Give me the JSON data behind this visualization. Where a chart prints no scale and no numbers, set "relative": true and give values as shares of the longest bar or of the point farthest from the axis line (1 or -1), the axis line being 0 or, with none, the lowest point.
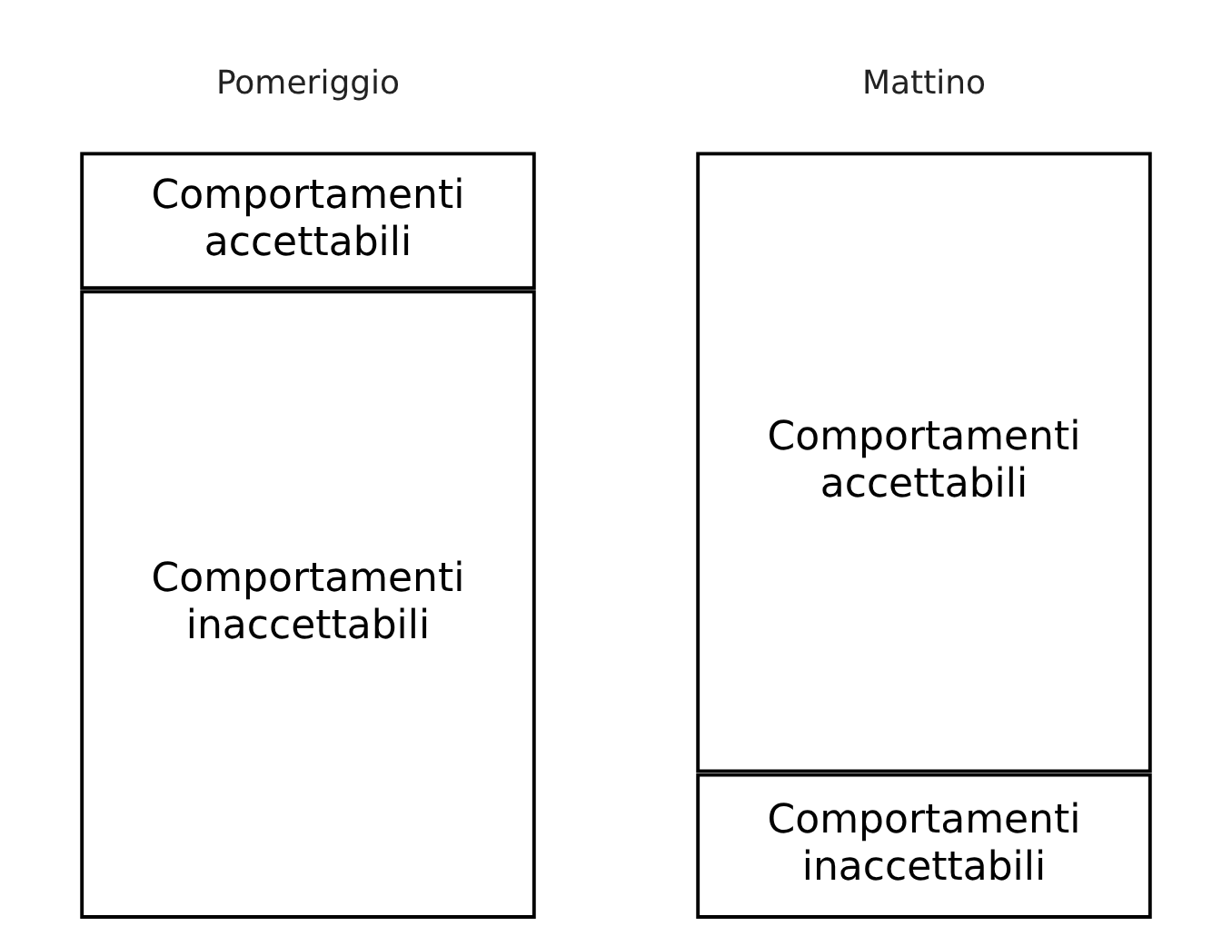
{
  "chart_data": {
    "type": "bar",
    "categories": [
      "Pomeriggio",
      "Mattino"
    ],
    "stacked": true,
    "relative": true,
    "series": [
      {
        "name": "Comportamenti inaccettabili",
        "color": "#000000",
        "values": [
          0.82,
          0.19
        ]
      },
      {
        "name": "Comportamenti accettabili",
        "color": "#000000",
        "values": [
          0.18,
          0.81
        ]
      }
    ]
  }
}
